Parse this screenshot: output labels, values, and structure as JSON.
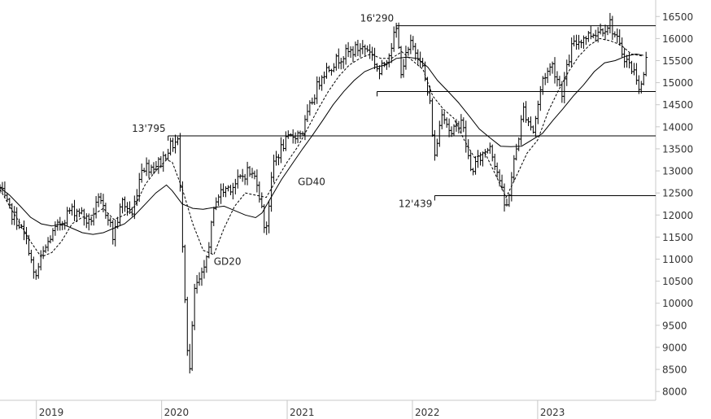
{
  "chart_data": {
    "type": "line",
    "title": "",
    "xlabel": "",
    "ylabel": "",
    "ylim": [
      7800,
      16800
    ],
    "xlim": [
      "2018-09-17",
      "2023-12-11"
    ],
    "y_ticks": [
      8000,
      8500,
      9000,
      9500,
      10000,
      10500,
      11000,
      11500,
      12000,
      12500,
      13000,
      13500,
      14000,
      14500,
      15000,
      15500,
      16000,
      16500
    ],
    "x_ticks": [
      {
        "date": "2019-01-01",
        "label": "2019"
      },
      {
        "date": "2020-01-01",
        "label": "2020"
      },
      {
        "date": "2021-01-01",
        "label": "2021"
      },
      {
        "date": "2022-01-01",
        "label": "2022"
      },
      {
        "date": "2023-01-01",
        "label": "2023"
      }
    ],
    "grid": false,
    "colors": {
      "price": "#000000",
      "lines": "#000000",
      "axis": "#c8c8c8"
    },
    "levels": [
      {
        "label": "16'290",
        "value": 16290,
        "from": "2021-11-15"
      },
      {
        "label": "13'795",
        "value": 13795,
        "from": "2020-01-20"
      },
      {
        "label": "12'439",
        "value": 12439,
        "from": "2022-03-07"
      },
      {
        "label": "",
        "value": 14800,
        "from": "2021-09-20"
      }
    ],
    "annotations": [
      {
        "text": "GD40",
        "date": "2021-02-01",
        "value": 12680
      },
      {
        "text": "GD20",
        "date": "2020-06-01",
        "value": 10870
      }
    ],
    "series": [
      {
        "name": "GD40",
        "style": "solid",
        "points": [
          [
            "2018-09-17",
            12620
          ],
          [
            "2018-10-15",
            12450
          ],
          [
            "2018-11-15",
            12200
          ],
          [
            "2018-12-15",
            11950
          ],
          [
            "2019-01-15",
            11800
          ],
          [
            "2019-02-15",
            11750
          ],
          [
            "2019-03-15",
            11800
          ],
          [
            "2019-04-15",
            11700
          ],
          [
            "2019-05-15",
            11600
          ],
          [
            "2019-06-15",
            11560
          ],
          [
            "2019-07-15",
            11600
          ],
          [
            "2019-08-15",
            11700
          ],
          [
            "2019-09-15",
            11800
          ],
          [
            "2019-10-15",
            12000
          ],
          [
            "2019-11-15",
            12250
          ],
          [
            "2019-12-15",
            12500
          ],
          [
            "2020-01-15",
            12680
          ],
          [
            "2020-02-01",
            12550
          ],
          [
            "2020-03-01",
            12250
          ],
          [
            "2020-04-01",
            12150
          ],
          [
            "2020-05-01",
            12130
          ],
          [
            "2020-06-01",
            12170
          ],
          [
            "2020-07-01",
            12200
          ],
          [
            "2020-08-01",
            12100
          ],
          [
            "2020-09-01",
            12000
          ],
          [
            "2020-10-01",
            11940
          ],
          [
            "2020-10-20",
            12050
          ],
          [
            "2020-11-15",
            12400
          ],
          [
            "2020-12-15",
            12800
          ],
          [
            "2021-01-15",
            13150
          ],
          [
            "2021-02-15",
            13500
          ],
          [
            "2021-03-15",
            13800
          ],
          [
            "2021-04-15",
            14150
          ],
          [
            "2021-05-15",
            14500
          ],
          [
            "2021-06-15",
            14800
          ],
          [
            "2021-07-15",
            15050
          ],
          [
            "2021-08-15",
            15250
          ],
          [
            "2021-09-15",
            15350
          ],
          [
            "2021-10-15",
            15400
          ],
          [
            "2021-11-15",
            15550
          ],
          [
            "2021-12-15",
            15580
          ],
          [
            "2022-01-15",
            15550
          ],
          [
            "2022-02-15",
            15350
          ],
          [
            "2022-03-15",
            15050
          ],
          [
            "2022-04-15",
            14800
          ],
          [
            "2022-05-15",
            14550
          ],
          [
            "2022-06-15",
            14250
          ],
          [
            "2022-07-15",
            13950
          ],
          [
            "2022-08-15",
            13750
          ],
          [
            "2022-09-15",
            13560
          ],
          [
            "2022-10-15",
            13550
          ],
          [
            "2022-11-15",
            13560
          ],
          [
            "2022-12-15",
            13700
          ],
          [
            "2023-01-15",
            13850
          ],
          [
            "2023-02-15",
            14150
          ],
          [
            "2023-03-15",
            14400
          ],
          [
            "2023-04-15",
            14700
          ],
          [
            "2023-05-15",
            14950
          ],
          [
            "2023-06-15",
            15250
          ],
          [
            "2023-07-15",
            15450
          ],
          [
            "2023-08-15",
            15500
          ],
          [
            "2023-09-15",
            15600
          ],
          [
            "2023-10-15",
            15650
          ],
          [
            "2023-11-05",
            15620
          ]
        ]
      },
      {
        "name": "GD20",
        "style": "dashed",
        "points": [
          [
            "2018-09-17",
            12580
          ],
          [
            "2018-10-15",
            12200
          ],
          [
            "2018-11-15",
            11800
          ],
          [
            "2018-12-15",
            11400
          ],
          [
            "2019-01-15",
            11050
          ],
          [
            "2019-02-15",
            11150
          ],
          [
            "2019-03-15",
            11400
          ],
          [
            "2019-04-15",
            11800
          ],
          [
            "2019-05-15",
            11950
          ],
          [
            "2019-06-15",
            12000
          ],
          [
            "2019-07-15",
            12150
          ],
          [
            "2019-08-15",
            11900
          ],
          [
            "2019-09-15",
            12000
          ],
          [
            "2019-10-15",
            12200
          ],
          [
            "2019-11-15",
            12700
          ],
          [
            "2019-12-15",
            13000
          ],
          [
            "2020-01-15",
            13250
          ],
          [
            "2020-02-01",
            13200
          ],
          [
            "2020-03-01",
            12600
          ],
          [
            "2020-04-01",
            11800
          ],
          [
            "2020-05-01",
            11200
          ],
          [
            "2020-06-01",
            11100
          ],
          [
            "2020-07-01",
            11700
          ],
          [
            "2020-08-01",
            12200
          ],
          [
            "2020-09-01",
            12500
          ],
          [
            "2020-10-01",
            12450
          ],
          [
            "2020-11-01",
            12400
          ],
          [
            "2020-12-01",
            12800
          ],
          [
            "2021-01-01",
            13200
          ],
          [
            "2021-02-01",
            13550
          ],
          [
            "2021-03-01",
            13950
          ],
          [
            "2021-04-01",
            14400
          ],
          [
            "2021-05-01",
            14800
          ],
          [
            "2021-06-01",
            15150
          ],
          [
            "2021-07-01",
            15400
          ],
          [
            "2021-08-01",
            15550
          ],
          [
            "2021-09-01",
            15650
          ],
          [
            "2021-10-01",
            15550
          ],
          [
            "2021-11-01",
            15550
          ],
          [
            "2021-12-01",
            15700
          ],
          [
            "2022-01-01",
            15500
          ],
          [
            "2022-02-01",
            15300
          ],
          [
            "2022-03-01",
            14700
          ],
          [
            "2022-04-01",
            14400
          ],
          [
            "2022-05-01",
            14200
          ],
          [
            "2022-06-01",
            13700
          ],
          [
            "2022-07-01",
            13300
          ],
          [
            "2022-08-01",
            13400
          ],
          [
            "2022-09-01",
            12900
          ],
          [
            "2022-10-01",
            12400
          ],
          [
            "2022-11-01",
            12900
          ],
          [
            "2022-12-01",
            13400
          ],
          [
            "2023-01-01",
            13700
          ],
          [
            "2023-02-01",
            14350
          ],
          [
            "2023-03-01",
            14800
          ],
          [
            "2023-04-01",
            15250
          ],
          [
            "2023-05-01",
            15600
          ],
          [
            "2023-06-01",
            15850
          ],
          [
            "2023-07-01",
            16000
          ],
          [
            "2023-08-01",
            15950
          ],
          [
            "2023-09-01",
            15850
          ],
          [
            "2023-10-01",
            15650
          ],
          [
            "2023-11-05",
            15600
          ]
        ]
      },
      {
        "name": "",
        "style": "weekly-bars",
        "points": [
          [
            "2018-09-17",
            12600
          ],
          [
            "2018-10-15",
            12100
          ],
          [
            "2018-11-12",
            11800
          ],
          [
            "2018-12-10",
            11250
          ],
          [
            "2018-12-27",
            10500
          ],
          [
            "2019-01-14",
            11000
          ],
          [
            "2019-02-11",
            11500
          ],
          [
            "2019-03-11",
            11800
          ],
          [
            "2019-04-08",
            12100
          ],
          [
            "2019-05-06",
            12100
          ],
          [
            "2019-06-03",
            11800
          ],
          [
            "2019-07-01",
            12300
          ],
          [
            "2019-07-29",
            12000
          ],
          [
            "2019-08-12",
            11500
          ],
          [
            "2019-09-09",
            12300
          ],
          [
            "2019-10-07",
            12000
          ],
          [
            "2019-11-04",
            13100
          ],
          [
            "2019-12-02",
            13100
          ],
          [
            "2019-12-30",
            13200
          ],
          [
            "2020-01-20",
            13500
          ],
          [
            "2020-02-17",
            13700
          ],
          [
            "2020-02-28",
            11900
          ],
          [
            "2020-03-16",
            9000
          ],
          [
            "2020-03-23",
            8500
          ],
          [
            "2020-04-06",
            10300
          ],
          [
            "2020-05-04",
            10700
          ],
          [
            "2020-06-08",
            12400
          ],
          [
            "2020-07-06",
            12600
          ],
          [
            "2020-08-03",
            12700
          ],
          [
            "2020-09-07",
            13000
          ],
          [
            "2020-10-05",
            12800
          ],
          [
            "2020-10-30",
            11600
          ],
          [
            "2020-11-23",
            13200
          ],
          [
            "2020-12-21",
            13600
          ],
          [
            "2021-01-18",
            13800
          ],
          [
            "2021-02-15",
            13900
          ],
          [
            "2021-03-15",
            14600
          ],
          [
            "2021-04-12",
            15200
          ],
          [
            "2021-05-10",
            15400
          ],
          [
            "2021-06-07",
            15600
          ],
          [
            "2021-07-05",
            15700
          ],
          [
            "2021-08-02",
            15800
          ],
          [
            "2021-08-30",
            15750
          ],
          [
            "2021-09-27",
            15200
          ],
          [
            "2021-10-25",
            15700
          ],
          [
            "2021-11-15",
            16200
          ],
          [
            "2021-11-29",
            15300
          ],
          [
            "2021-12-27",
            15850
          ],
          [
            "2022-01-24",
            15600
          ],
          [
            "2022-02-21",
            14500
          ],
          [
            "2022-03-07",
            13300
          ],
          [
            "2022-03-28",
            14400
          ],
          [
            "2022-04-25",
            13800
          ],
          [
            "2022-05-23",
            14200
          ],
          [
            "2022-06-20",
            13000
          ],
          [
            "2022-07-18",
            13300
          ],
          [
            "2022-08-15",
            13600
          ],
          [
            "2022-09-12",
            12800
          ],
          [
            "2022-09-30",
            12050
          ],
          [
            "2022-10-24",
            13200
          ],
          [
            "2022-11-21",
            14400
          ],
          [
            "2022-12-19",
            13900
          ],
          [
            "2023-01-16",
            15100
          ],
          [
            "2023-02-13",
            15400
          ],
          [
            "2023-03-13",
            14800
          ],
          [
            "2023-04-10",
            15800
          ],
          [
            "2023-05-08",
            16000
          ],
          [
            "2023-06-05",
            16100
          ],
          [
            "2023-07-03",
            16200
          ],
          [
            "2023-07-31",
            16350
          ],
          [
            "2023-08-28",
            15800
          ],
          [
            "2023-09-25",
            15400
          ],
          [
            "2023-10-16",
            15150
          ],
          [
            "2023-10-27",
            14800
          ],
          [
            "2023-11-06",
            15200
          ],
          [
            "2023-11-13",
            15500
          ]
        ]
      }
    ]
  }
}
